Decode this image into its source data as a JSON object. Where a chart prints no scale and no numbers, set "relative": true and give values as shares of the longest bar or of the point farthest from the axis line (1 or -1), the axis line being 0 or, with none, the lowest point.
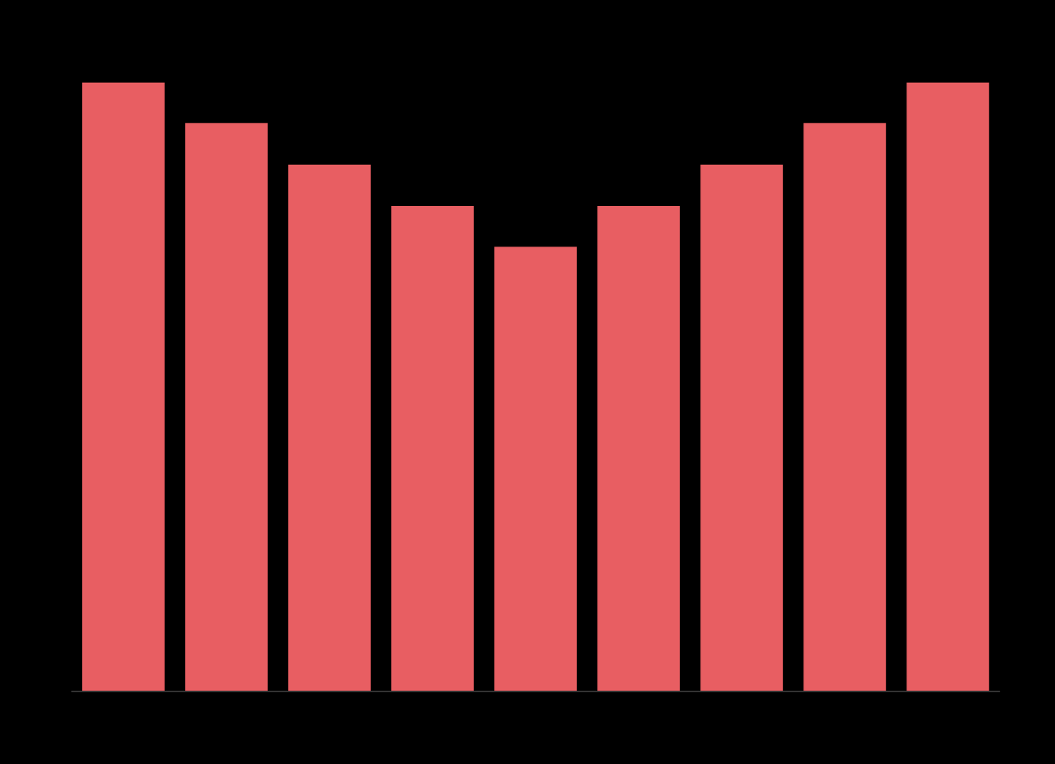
{
  "chart_data": {
    "type": "bar",
    "relative": true,
    "categories": [
      null,
      null,
      null,
      null,
      null,
      null,
      null,
      null,
      null
    ],
    "series": [
      {
        "color": "#e85e62",
        "values": [
          1,
          0.933,
          0.865,
          0.797,
          0.73,
          0.797,
          0.865,
          0.933,
          1
        ]
      }
    ],
    "grid": false
  }
}
